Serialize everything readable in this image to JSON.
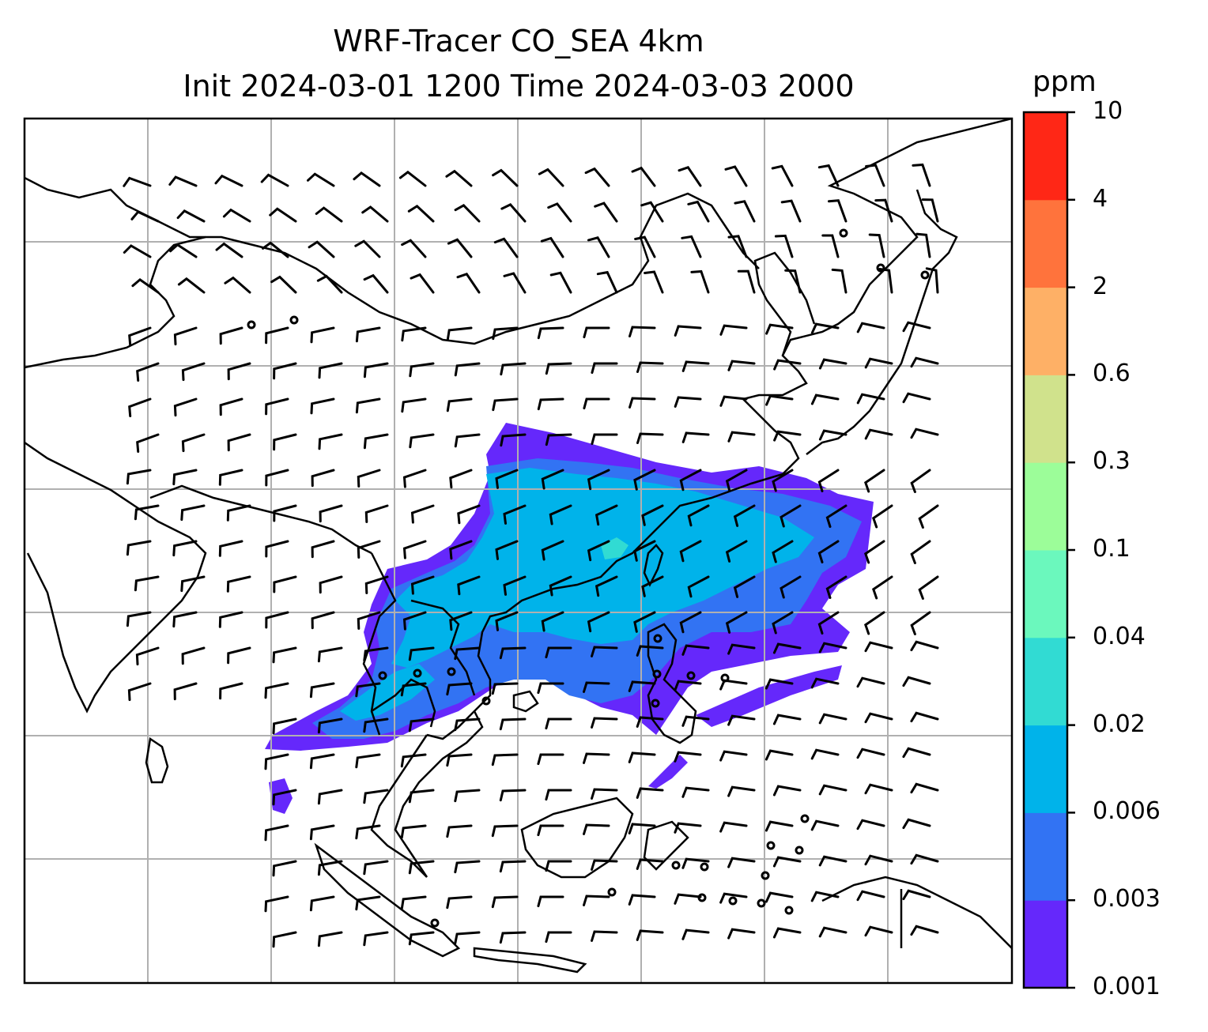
{
  "title": {
    "line1": "WRF-Tracer CO_SEA 4km",
    "line2": "Init 2024-03-01 1200 Time 2024-03-03 2000"
  },
  "colorbar": {
    "units": "ppm",
    "levels": [
      "0.001",
      "0.003",
      "0.006",
      "0.02",
      "0.04",
      "0.1",
      "0.3",
      "0.6",
      "2",
      "4",
      "10"
    ],
    "colors": [
      "#6528fb",
      "#3273f3",
      "#00b3ea",
      "#31dbd3",
      "#6bf8bd",
      "#9cfd99",
      "#d0e28c",
      "#feb066",
      "#ff733c",
      "#ff2716"
    ]
  },
  "map": {
    "type": "filled contour map with wind barbs",
    "gridlines": true,
    "coastline_color": "#000000",
    "gridline_color": "#b0b0b0"
  }
}
